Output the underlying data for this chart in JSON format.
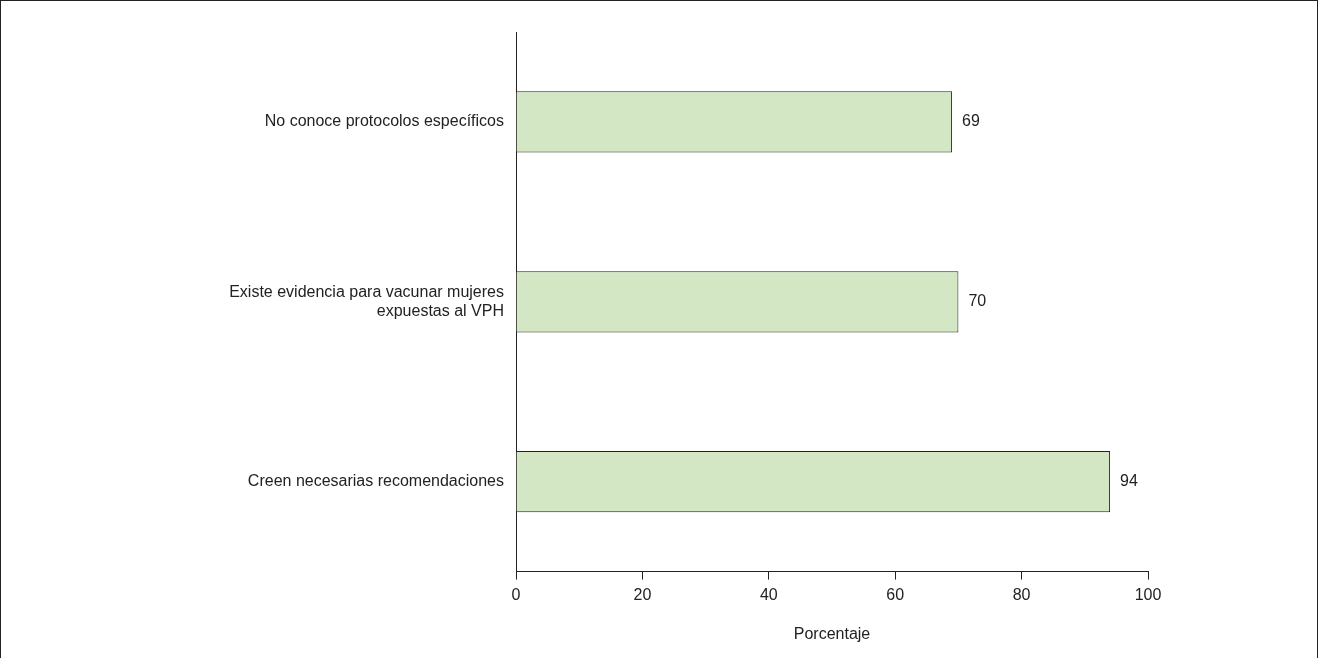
{
  "chart_data": {
    "type": "bar",
    "orientation": "horizontal",
    "xlabel": "Porcentaje",
    "categories": [
      "No conoce protocolos específicos",
      "Existe evidencia para vacunar mujeres expuestas al VPH",
      "Creen necesarias recomendaciones"
    ],
    "values": [
      69,
      70,
      94
    ],
    "color": "#d3e7c4",
    "xlim": [
      0,
      100
    ],
    "xticks": [
      0,
      20,
      40,
      60,
      80,
      100
    ],
    "data_labels": true,
    "grid": false,
    "legend": false
  }
}
